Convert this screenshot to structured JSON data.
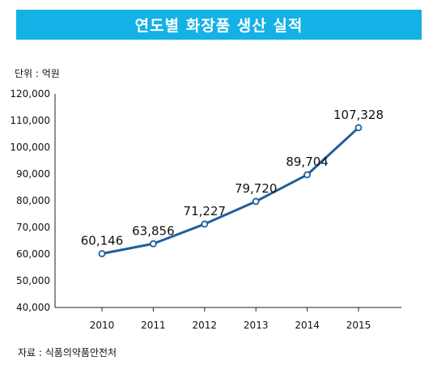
{
  "header": {
    "title": "연도별 화장품 생산 실적"
  },
  "unit_label": "단위 : 억원",
  "source_label": "자료 : 식품의약품안전처",
  "colors": {
    "title_bg": "#14b1e7",
    "line": "#1f5f9b",
    "marker_fill": "#ffffff"
  },
  "chart_data": {
    "type": "line",
    "title": "연도별 화장품 생산 실적",
    "unit": "단위 : 억원",
    "categories": [
      "2010",
      "2011",
      "2012",
      "2013",
      "2014",
      "2015"
    ],
    "values": [
      60146,
      63856,
      71227,
      79720,
      89704,
      107328
    ],
    "data_labels": [
      "60,146",
      "63,856",
      "71,227",
      "79,720",
      "89,704",
      "107,328"
    ],
    "yticks": [
      "40,000",
      "50,000",
      "60,000",
      "70,000",
      "80,000",
      "90,000",
      "100,000",
      "110,000",
      "120,000"
    ],
    "ylim": [
      40000,
      120000
    ],
    "grid": false,
    "legend": "none"
  }
}
